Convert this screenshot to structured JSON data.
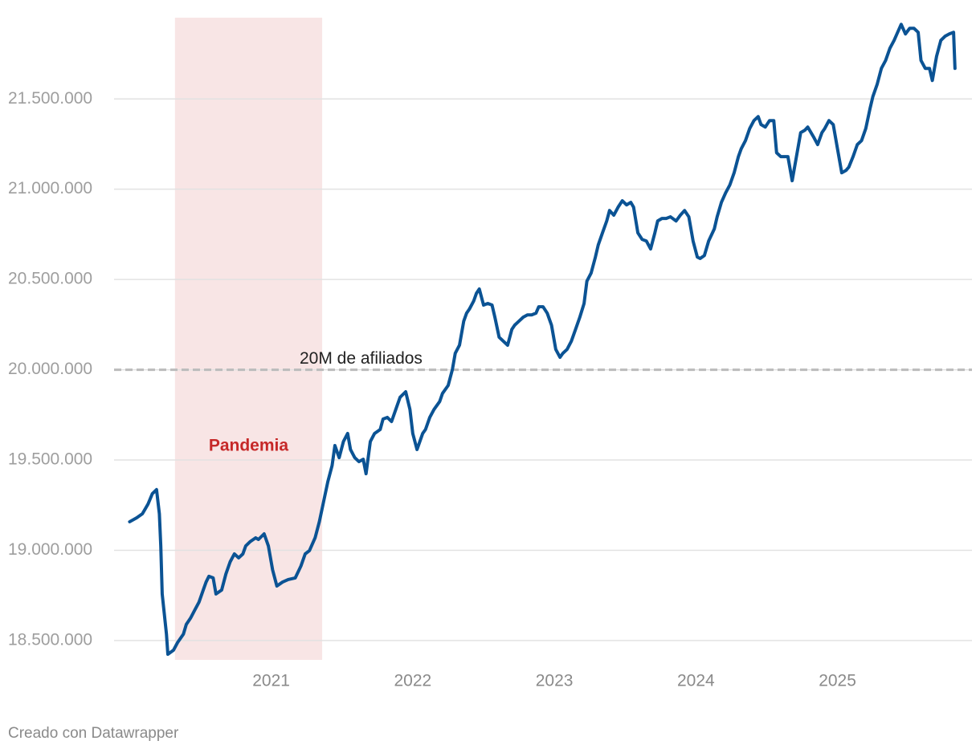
{
  "chart_data": {
    "type": "line",
    "color": "#0b5394",
    "x": [
      2020.0,
      2020.05,
      2020.09,
      2020.13,
      2020.16,
      2020.19,
      2020.21,
      2020.22,
      2020.23,
      2020.26,
      2020.27,
      2020.31,
      2020.34,
      2020.38,
      2020.4,
      2020.43,
      2020.46,
      2020.49,
      2020.52,
      2020.54,
      2020.56,
      2020.59,
      2020.61,
      2020.65,
      2020.68,
      2020.71,
      2020.74,
      2020.77,
      2020.8,
      2020.82,
      2020.85,
      2020.89,
      2020.91,
      2020.95,
      2020.98,
      2021.01,
      2021.04,
      2021.08,
      2021.12,
      2021.17,
      2021.21,
      2021.24,
      2021.27,
      2021.31,
      2021.34,
      2021.37,
      2021.4,
      2021.43,
      2021.45,
      2021.48,
      2021.51,
      2021.54,
      2021.56,
      2021.59,
      2021.62,
      2021.65,
      2021.67,
      2021.7,
      2021.73,
      2021.77,
      2021.79,
      2021.82,
      2021.85,
      2021.88,
      2021.91,
      2021.95,
      2021.98,
      2022.0,
      2022.03,
      2022.07,
      2022.09,
      2022.12,
      2022.15,
      2022.19,
      2022.21,
      2022.25,
      2022.28,
      2022.3,
      2022.33,
      2022.36,
      2022.38,
      2022.4,
      2022.43,
      2022.45,
      2022.47,
      2022.5,
      2022.53,
      2022.56,
      2022.58,
      2022.61,
      2022.64,
      2022.67,
      2022.7,
      2022.72,
      2022.75,
      2022.78,
      2022.81,
      2022.84,
      2022.87,
      2022.89,
      2022.92,
      2022.95,
      2022.98,
      2023.01,
      2023.04,
      2023.06,
      2023.09,
      2023.12,
      2023.15,
      2023.18,
      2023.21,
      2023.23,
      2023.26,
      2023.29,
      2023.31,
      2023.34,
      2023.37,
      2023.39,
      2023.42,
      2023.45,
      2023.48,
      2023.51,
      2023.54,
      2023.56,
      2023.59,
      2023.62,
      2023.65,
      2023.68,
      2023.71,
      2023.73,
      2023.76,
      2023.79,
      2023.82,
      2023.86,
      2023.89,
      2023.92,
      2023.95,
      2023.98,
      2024.01,
      2024.03,
      2024.06,
      2024.09,
      2024.13,
      2024.15,
      2024.18,
      2024.21,
      2024.24,
      2024.27,
      2024.3,
      2024.32,
      2024.35,
      2024.38,
      2024.41,
      2024.44,
      2024.46,
      2024.49,
      2024.52,
      2024.55,
      2024.57,
      2024.6,
      2024.62,
      2024.65,
      2024.68,
      2024.71,
      2024.74,
      2024.77,
      2024.79,
      2024.83,
      2024.86,
      2024.89,
      2024.91,
      2024.94,
      2024.97,
      2025.0,
      2025.03,
      2025.06,
      2025.08,
      2025.11,
      2025.14,
      2025.17,
      2025.2,
      2025.23,
      2025.25,
      2025.28,
      2025.31,
      2025.34,
      2025.37,
      2025.4,
      2025.42,
      2025.45,
      2025.48,
      2025.51,
      2025.54,
      2025.57,
      2025.59,
      2025.62,
      2025.65,
      2025.67,
      2025.7,
      2025.73,
      2025.76,
      2025.79,
      2025.82,
      2025.83
    ],
    "values": [
      19158000,
      19180000,
      19202000,
      19256000,
      19313000,
      19336000,
      19202000,
      19024000,
      18758000,
      18536000,
      18424000,
      18447000,
      18491000,
      18536000,
      18589000,
      18624000,
      18669000,
      18713000,
      18780000,
      18824000,
      18856000,
      18847000,
      18758000,
      18780000,
      18869000,
      18936000,
      18980000,
      18958000,
      18980000,
      19024000,
      19047000,
      19069000,
      19060000,
      19091000,
      19024000,
      18891000,
      18802000,
      18824000,
      18838000,
      18847000,
      18913000,
      18980000,
      18998000,
      19069000,
      19158000,
      19269000,
      19380000,
      19469000,
      19580000,
      19513000,
      19602000,
      19647000,
      19558000,
      19513000,
      19491000,
      19504000,
      19424000,
      19602000,
      19647000,
      19669000,
      19727000,
      19736000,
      19713000,
      19780000,
      19847000,
      19878000,
      19780000,
      19647000,
      19558000,
      19647000,
      19669000,
      19736000,
      19780000,
      19824000,
      19869000,
      19913000,
      20002000,
      20091000,
      20136000,
      20269000,
      20313000,
      20336000,
      20380000,
      20424000,
      20447000,
      20358000,
      20367000,
      20358000,
      20291000,
      20180000,
      20158000,
      20136000,
      20224000,
      20247000,
      20269000,
      20291000,
      20304000,
      20304000,
      20313000,
      20349000,
      20349000,
      20313000,
      20247000,
      20113000,
      20069000,
      20091000,
      20113000,
      20158000,
      20224000,
      20291000,
      20367000,
      20491000,
      20536000,
      20624000,
      20691000,
      20758000,
      20824000,
      20882000,
      20856000,
      20900000,
      20936000,
      20913000,
      20927000,
      20900000,
      20758000,
      20722000,
      20713000,
      20669000,
      20758000,
      20824000,
      20838000,
      20838000,
      20847000,
      20824000,
      20856000,
      20882000,
      20847000,
      20713000,
      20624000,
      20616000,
      20633000,
      20713000,
      20780000,
      20847000,
      20927000,
      20980000,
      21024000,
      21091000,
      21180000,
      21224000,
      21269000,
      21336000,
      21380000,
      21402000,
      21358000,
      21344000,
      21380000,
      21380000,
      21202000,
      21180000,
      21180000,
      21180000,
      21047000,
      21180000,
      21313000,
      21327000,
      21344000,
      21291000,
      21247000,
      21313000,
      21336000,
      21380000,
      21358000,
      21224000,
      21091000,
      21104000,
      21122000,
      21180000,
      21247000,
      21269000,
      21336000,
      21447000,
      21513000,
      21580000,
      21669000,
      21713000,
      21780000,
      21824000,
      21860000,
      21913000,
      21860000,
      21891000,
      21891000,
      21869000,
      21713000,
      21669000,
      21669000,
      21602000,
      21736000,
      21824000,
      21847000,
      21860000,
      21869000,
      21669000
    ],
    "xlim": [
      2019.89,
      2025.95
    ],
    "xticks": [
      2021,
      2022,
      2023,
      2024,
      2025
    ],
    "ylim": [
      18393000,
      21950000
    ],
    "yticks": [
      {
        "value": 18500000,
        "label": "18.500.000"
      },
      {
        "value": 19000000,
        "label": "19.000.000"
      },
      {
        "value": 19500000,
        "label": "19.500.000"
      },
      {
        "value": 20000000,
        "label": "20.000.000"
      },
      {
        "value": 20500000,
        "label": "20.500.000"
      },
      {
        "value": 21000000,
        "label": "21.000.000"
      },
      {
        "value": 21500000,
        "label": "21.500.000"
      }
    ],
    "grid": true,
    "highlight": {
      "label": "Pandemia",
      "x": [
        2020.32,
        2021.36
      ],
      "color": "#f8e5e5",
      "label_color": "#c62828"
    },
    "reference_line": {
      "value": 20000000,
      "label": "20M de afiliados",
      "color": "#bbbbbb"
    },
    "source": "Creado con Datawrapper"
  }
}
